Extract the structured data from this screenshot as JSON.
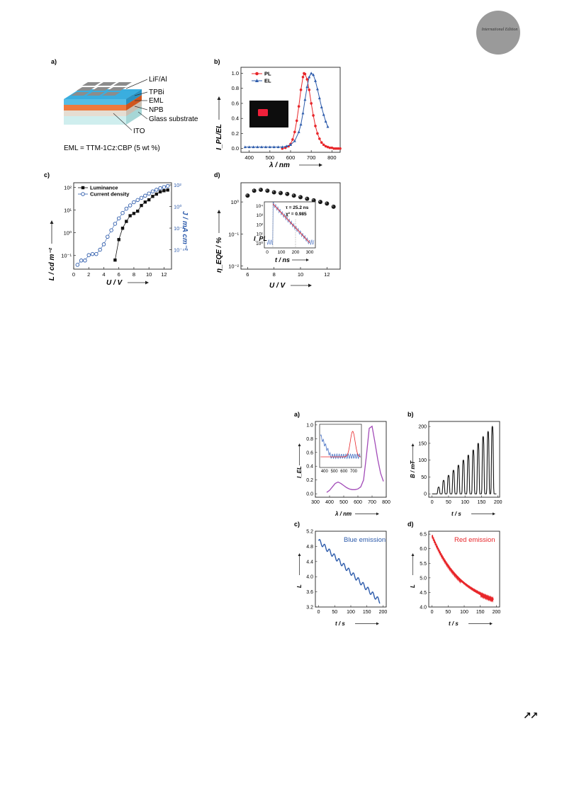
{
  "header": {
    "badge_text": "International Edition",
    "badge_color": "#9a9a9a"
  },
  "figure1": {
    "a": {
      "label": "a)",
      "layers": [
        "LiF/Al",
        "TPBi",
        "EML",
        "NPB",
        "Glass substrate",
        "ITO"
      ],
      "eml_note": "EML = TTM-1Cz:CBP (5 wt %)",
      "colors": {
        "cathode": "#8c8c8c",
        "tpbi": "#3aaedf",
        "eml": "#ee6a2c",
        "npb": "#d9d0c4",
        "glass": "#bfe6e6"
      }
    },
    "b": {
      "label": "b)",
      "chart_data": {
        "type": "line",
        "xlabel": "λ / nm",
        "ylabel": "I_PL/EL",
        "xlim": [
          360,
          840
        ],
        "ylim": [
          -0.05,
          1.08
        ],
        "xticks": [
          400,
          500,
          600,
          700,
          800
        ],
        "yticks": [
          0.0,
          0.2,
          0.4,
          0.6,
          0.8,
          1.0
        ],
        "legend": "top-left",
        "series": [
          {
            "name": "PL",
            "color": "#e8262a",
            "marker": "circle",
            "x": [
              560,
              575,
              590,
              600,
              610,
              620,
              630,
              640,
              650,
              660,
              665,
              670,
              680,
              690,
              700,
              710,
              720,
              730,
              740,
              750,
              760,
              770,
              780,
              790,
              800,
              810,
              820,
              830,
              840
            ],
            "y": [
              0.0,
              0.01,
              0.03,
              0.06,
              0.12,
              0.22,
              0.37,
              0.56,
              0.78,
              0.95,
              1.0,
              0.99,
              0.92,
              0.78,
              0.6,
              0.44,
              0.3,
              0.2,
              0.13,
              0.08,
              0.05,
              0.03,
              0.02,
              0.01,
              0.01,
              0.0,
              0.0,
              0.0,
              0.0
            ]
          },
          {
            "name": "EL",
            "color": "#2d5bab",
            "marker": "triangle",
            "x": [
              380,
              400,
              420,
              440,
              460,
              480,
              500,
              520,
              540,
              560,
              580,
              600,
              620,
              640,
              650,
              660,
              670,
              680,
              690,
              700,
              710,
              720,
              730,
              740,
              750,
              760,
              770,
              780
            ],
            "y": [
              0.02,
              0.02,
              0.02,
              0.02,
              0.02,
              0.02,
              0.02,
              0.02,
              0.02,
              0.02,
              0.03,
              0.05,
              0.1,
              0.22,
              0.32,
              0.47,
              0.65,
              0.82,
              0.95,
              1.0,
              0.98,
              0.9,
              0.79,
              0.67,
              0.55,
              0.45,
              0.36,
              0.29
            ]
          }
        ]
      }
    },
    "c": {
      "label": "c)",
      "chart_data": {
        "type": "scatter",
        "xlabel": "U / V",
        "ylabel": "L / cd m⁻²",
        "ylabel_right": "J / mA cm⁻²",
        "xlim": [
          0,
          13
        ],
        "xticks": [
          0,
          2,
          4,
          6,
          8,
          10,
          12
        ],
        "yticks_left": [
          "10⁻¹",
          "10⁰",
          "10¹",
          "10²"
        ],
        "yticks_right": [
          "10⁻⁴",
          "10⁻²",
          "10⁰",
          "10²"
        ],
        "legend": "top-left",
        "series": [
          {
            "name": "Luminance",
            "color": "#111111",
            "marker": "square",
            "x": [
              5.5,
              6.0,
              6.5,
              7.0,
              7.5,
              8.0,
              8.5,
              9.0,
              9.5,
              10.0,
              10.5,
              11.0,
              11.5,
              12.0,
              12.5
            ],
            "y_log": [
              -1.2,
              -0.3,
              0.2,
              0.5,
              0.75,
              0.85,
              0.95,
              1.2,
              1.35,
              1.45,
              1.6,
              1.7,
              1.8,
              1.85,
              1.88
            ]
          },
          {
            "name": "Current density",
            "color": "#2d5bab",
            "marker": "open-circle",
            "x": [
              0.5,
              1.0,
              1.5,
              2.0,
              2.5,
              3.0,
              3.5,
              4.0,
              4.5,
              5.0,
              5.5,
              6.0,
              6.5,
              7.0,
              7.5,
              8.0,
              8.5,
              9.0,
              9.5,
              10.0,
              10.5,
              11.0,
              11.5,
              12.0,
              12.5
            ],
            "y_log": [
              -5.4,
              -5.0,
              -5.0,
              -4.5,
              -4.4,
              -4.4,
              -4.0,
              -3.5,
              -2.8,
              -2.2,
              -1.6,
              -1.1,
              -0.6,
              -0.2,
              0.1,
              0.4,
              0.6,
              0.8,
              1.0,
              1.2,
              1.4,
              1.55,
              1.7,
              1.8,
              1.9
            ]
          }
        ]
      }
    },
    "d": {
      "label": "d)",
      "chart_data": {
        "type": "scatter",
        "xlabel": "U / V",
        "ylabel": "η_EQE / %",
        "xlim": [
          5.5,
          13
        ],
        "xticks": [
          6,
          8,
          10,
          12
        ],
        "yticks": [
          "10⁻²",
          "10⁻¹",
          "10⁰"
        ],
        "series": [
          {
            "name": "EQE",
            "color": "#111111",
            "marker": "sphere",
            "x": [
              6.0,
              6.5,
              7.0,
              7.5,
              8.0,
              8.5,
              9.0,
              9.5,
              10.0,
              10.5,
              11.0,
              11.5,
              12.0,
              12.5
            ],
            "y_log": [
              0.2,
              0.35,
              0.38,
              0.35,
              0.3,
              0.28,
              0.25,
              0.2,
              0.15,
              0.1,
              0.05,
              0.0,
              -0.05,
              -0.15
            ]
          }
        ],
        "inset": {
          "xlabel": "t / ns",
          "ylabel": "I_PL",
          "xticks": [
            0,
            100,
            200,
            300
          ],
          "yticks": [
            "10⁰",
            "10¹",
            "10²",
            "10³",
            "10⁴"
          ],
          "annotations": [
            "τ = 25.2 ns",
            "χ² = 0.985"
          ]
        }
      }
    }
  },
  "figure2": {
    "a": {
      "label": "a)",
      "chart_data": {
        "type": "line",
        "xlabel": "λ / nm",
        "ylabel": "I_EL",
        "xlim": [
          300,
          800
        ],
        "ylim": [
          -0.05,
          1.05
        ],
        "xticks": [
          300,
          400,
          500,
          600,
          700,
          800
        ],
        "yticks": [
          0.0,
          0.2,
          0.4,
          0.6,
          0.8,
          1.0
        ],
        "series": [
          {
            "color": "#a24bb8",
            "x": [
              380,
              400,
              420,
              440,
              460,
              480,
              500,
              520,
              540,
              560,
              580,
              600,
              620,
              640,
              660,
              680,
              700,
              720,
              740,
              760,
              780
            ],
            "y": [
              0.02,
              0.05,
              0.1,
              0.15,
              0.17,
              0.15,
              0.12,
              0.09,
              0.07,
              0.06,
              0.06,
              0.07,
              0.1,
              0.2,
              0.55,
              0.95,
              0.98,
              0.75,
              0.5,
              0.3,
              0.18
            ]
          }
        ],
        "inset": {
          "xticks": [
            400,
            500,
            600,
            700
          ]
        }
      }
    },
    "b": {
      "label": "b)",
      "chart_data": {
        "type": "line",
        "xlabel": "t / s",
        "ylabel": "B / mT",
        "xlim": [
          -10,
          205
        ],
        "ylim": [
          -10,
          215
        ],
        "xticks": [
          0,
          50,
          100,
          150,
          200
        ],
        "yticks": [
          0,
          50,
          100,
          150,
          200
        ],
        "pulse_centers": [
          20,
          35,
          50,
          65,
          80,
          95,
          110,
          125,
          140,
          155,
          170,
          183
        ],
        "pulse_peaks": [
          20,
          40,
          55,
          70,
          85,
          100,
          115,
          130,
          150,
          170,
          185,
          200
        ]
      }
    },
    "c": {
      "label": "c)",
      "chart_data": {
        "type": "line",
        "xlabel": "t / s",
        "ylabel": "L",
        "title": "Blue emission",
        "xlim": [
          -10,
          210
        ],
        "ylim": [
          3.2,
          5.2
        ],
        "xticks": [
          0,
          50,
          100,
          150,
          200
        ],
        "yticks": [
          3.2,
          3.6,
          4.0,
          4.4,
          4.8,
          5.2
        ],
        "series": [
          {
            "color": "#2d5bab",
            "start": 4.95,
            "end": 3.35
          }
        ]
      }
    },
    "d": {
      "label": "d)",
      "chart_data": {
        "type": "line",
        "xlabel": "t / s",
        "ylabel": "L",
        "title": "Red emission",
        "xlim": [
          -10,
          210
        ],
        "ylim": [
          4.0,
          6.6
        ],
        "xticks": [
          0,
          50,
          100,
          150,
          200
        ],
        "yticks": [
          4.0,
          4.5,
          5.0,
          5.5,
          6.0,
          6.5
        ],
        "series": [
          {
            "color": "#e8262a",
            "start": 6.45,
            "end": 4.25
          }
        ]
      }
    }
  },
  "footer": {
    "arrows": "↗↗"
  }
}
